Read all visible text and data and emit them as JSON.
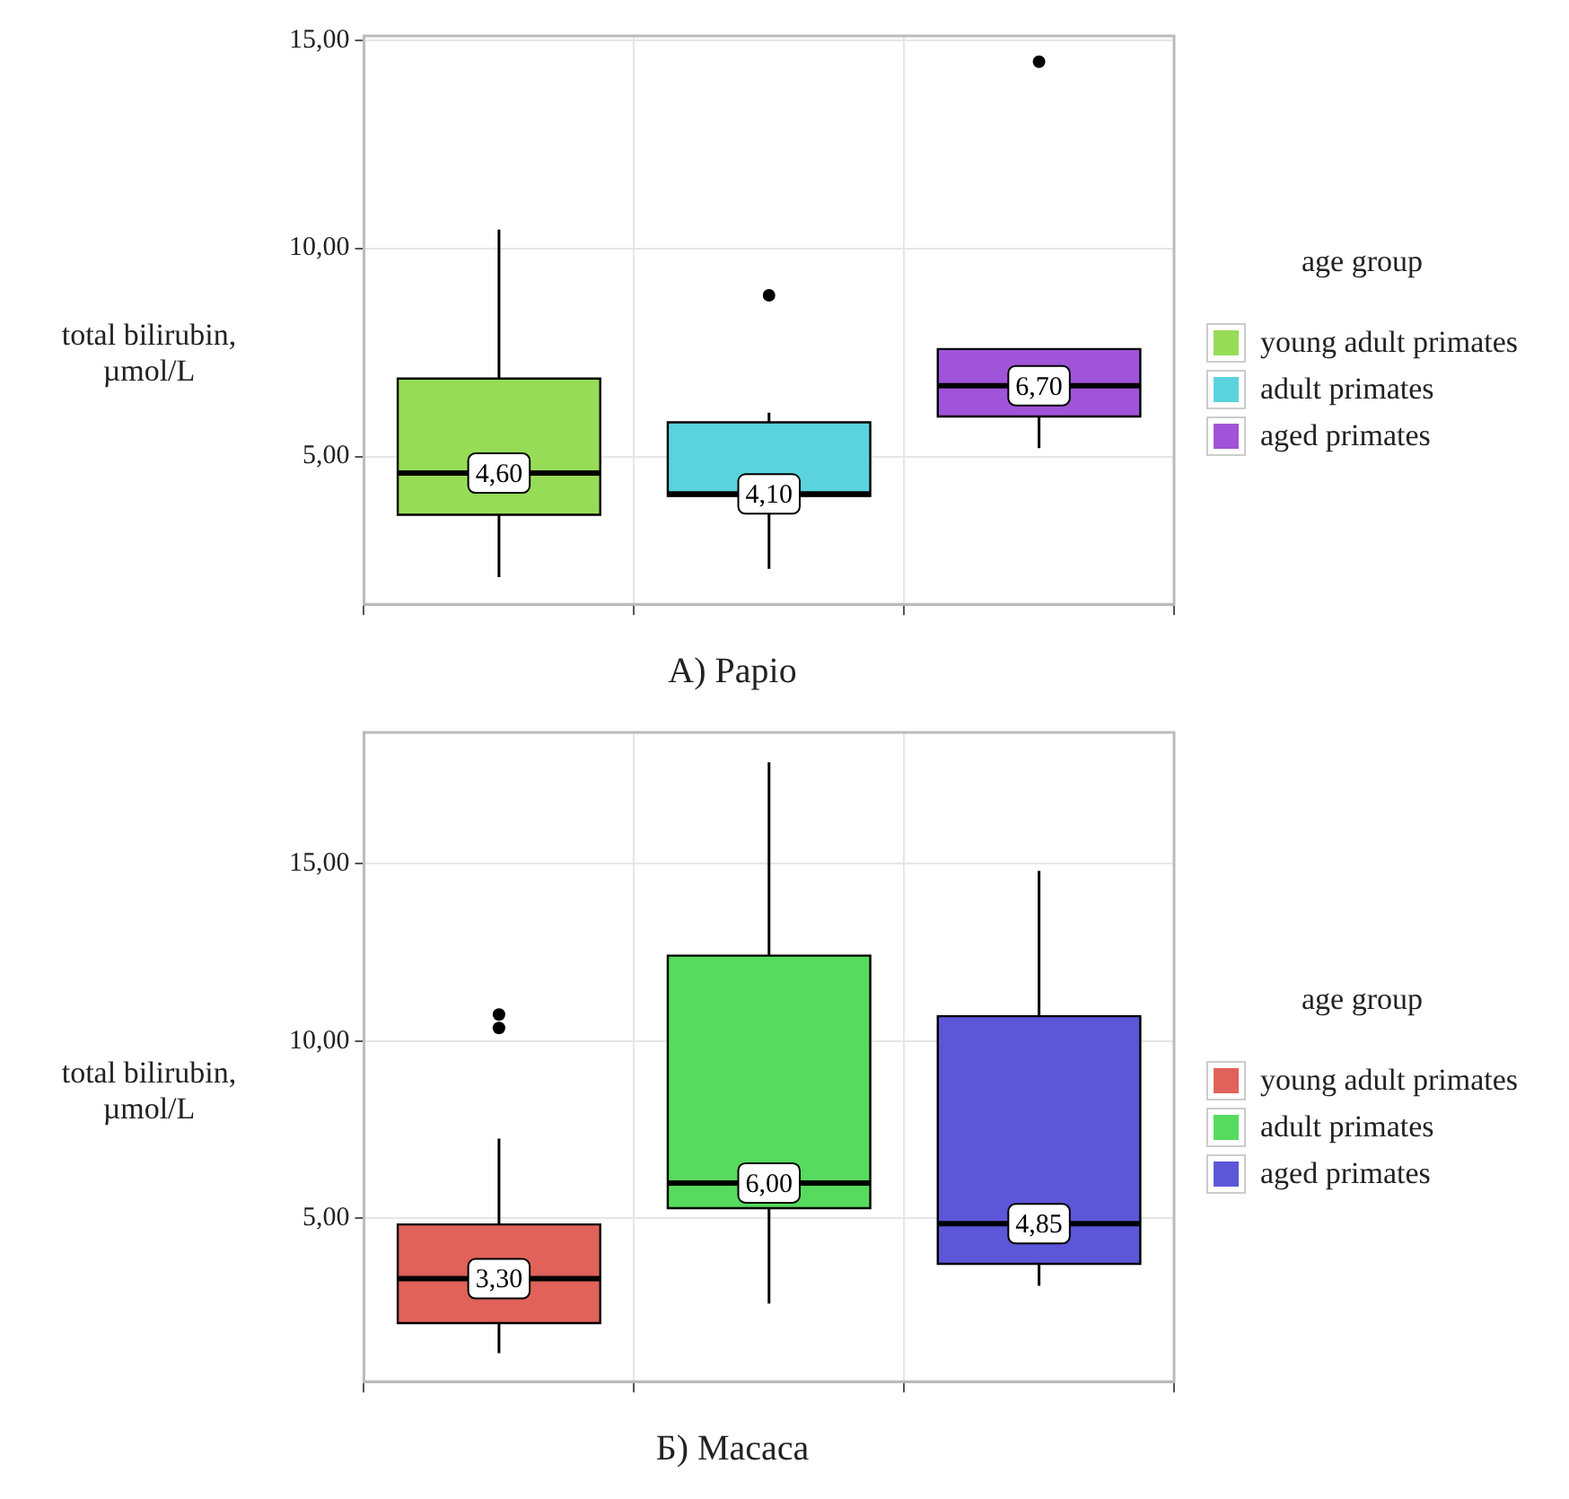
{
  "chart_data": [
    {
      "type": "box",
      "xlabel": "А) Papio",
      "ylabel": "total bilirubin, µmol/L",
      "legend_title": "age group",
      "categories": [
        null,
        null,
        null
      ],
      "ylim": [
        1.45,
        15.1
      ],
      "yticks": [
        {
          "value": 5,
          "label": "5,00"
        },
        {
          "value": 10,
          "label": "10,00"
        },
        {
          "value": 15,
          "label": "15,00"
        }
      ],
      "grid": true,
      "legend": "right",
      "series": [
        {
          "name": "young adult primates",
          "color": "#97dc57",
          "value_labels": [
            "4,60",
            null,
            null
          ],
          "boxes": [
            {
              "low": 2.1,
              "q1": 3.6,
              "median": 4.6,
              "q3": 6.87,
              "high": 10.45
            },
            null,
            null
          ]
        },
        {
          "name": "adult primates",
          "color": "#5bd3dc",
          "value_labels": [
            null,
            "4,10",
            null
          ],
          "boxes": [
            null,
            {
              "low": 2.3,
              "q1": 4.05,
              "median": 4.1,
              "q3": 5.82,
              "high": 6.05,
              "outliers": [
                8.87
              ]
            },
            null
          ]
        },
        {
          "name": "aged primates",
          "color": "#a054d9",
          "value_labels": [
            null,
            null,
            "6,70"
          ],
          "boxes": [
            null,
            null,
            {
              "low": 5.2,
              "q1": 5.96,
              "median": 6.7,
              "q3": 7.58,
              "high": 7.58,
              "outliers": [
                14.48
              ]
            }
          ]
        }
      ]
    },
    {
      "type": "box",
      "xlabel": "Б) Macaca",
      "ylabel": "total bilirubin, µmol/L",
      "legend_title": "age group",
      "categories": [
        null,
        null,
        null
      ],
      "ylim": [
        0.4,
        18.7
      ],
      "yticks": [
        {
          "value": 5,
          "label": "5,00"
        },
        {
          "value": 10,
          "label": "10,00"
        },
        {
          "value": 15,
          "label": "15,00"
        }
      ],
      "grid": true,
      "legend": "right",
      "series": [
        {
          "name": "young adult primates",
          "color": "#e0625a",
          "value_labels": [
            "3,30",
            null,
            null
          ],
          "boxes": [
            {
              "low": 1.2,
              "q1": 2.05,
              "median": 3.3,
              "q3": 4.83,
              "high": 7.25,
              "outliers": [
                10.75,
                10.37
              ]
            },
            null,
            null
          ]
        },
        {
          "name": "adult primates",
          "color": "#57db5e",
          "value_labels": [
            null,
            "6,00",
            null
          ],
          "boxes": [
            null,
            {
              "low": 2.6,
              "q1": 5.29,
              "median": 6.0,
              "q3": 12.41,
              "high": 17.86
            },
            null
          ]
        },
        {
          "name": "aged primates",
          "color": "#5c57d8",
          "value_labels": [
            null,
            null,
            "4,85"
          ],
          "boxes": [
            null,
            null,
            {
              "low": 3.1,
              "q1": 3.72,
              "median": 4.85,
              "q3": 10.7,
              "high": 14.8
            }
          ]
        }
      ]
    }
  ]
}
